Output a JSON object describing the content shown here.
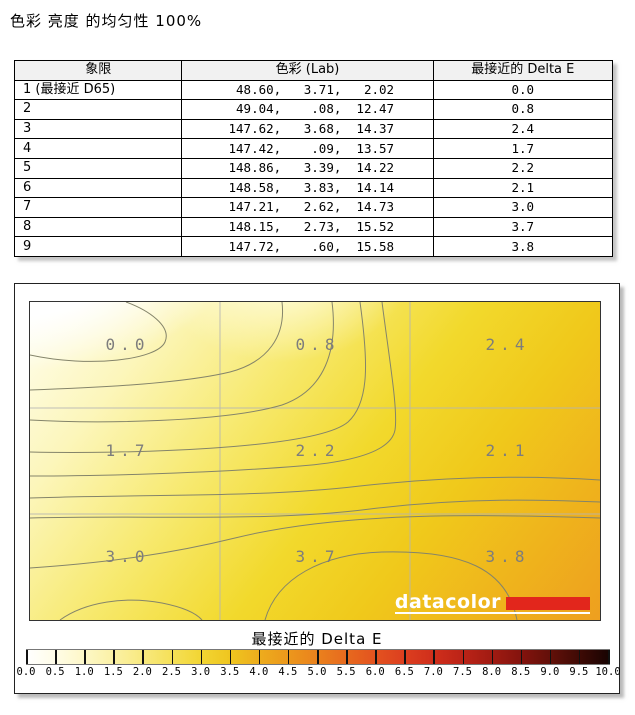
{
  "page_title": "色彩 亮度 的均匀性 100%",
  "table": {
    "headers": [
      "象限",
      "色彩 (Lab)",
      "最接近的 Delta E"
    ],
    "rows": [
      {
        "quadrant": "1 (最接近 D65)",
        "lab": "  48.60,   3.71,   2.02",
        "delta_e": "0.0"
      },
      {
        "quadrant": "2",
        "lab": "  49.04,    .08,  12.47",
        "delta_e": "0.8"
      },
      {
        "quadrant": "3",
        "lab": " 147.62,   3.68,  14.37",
        "delta_e": "2.4"
      },
      {
        "quadrant": "4",
        "lab": " 147.42,    .09,  13.57",
        "delta_e": "1.7"
      },
      {
        "quadrant": "5",
        "lab": " 148.86,   3.39,  14.22",
        "delta_e": "2.2"
      },
      {
        "quadrant": "6",
        "lab": " 148.58,   3.83,  14.14",
        "delta_e": "2.1"
      },
      {
        "quadrant": "7",
        "lab": " 147.21,   2.62,  14.73",
        "delta_e": "3.0"
      },
      {
        "quadrant": "8",
        "lab": " 148.15,   2.73,  15.52",
        "delta_e": "3.7"
      },
      {
        "quadrant": "9",
        "lab": " 147.72,    .60,  15.58",
        "delta_e": "3.8"
      }
    ]
  },
  "chart_data": {
    "type": "heatmap",
    "title": "最接近的 Delta E",
    "grid": {
      "rows": 3,
      "cols": 3
    },
    "cell_values": [
      [
        0.0,
        0.8,
        2.4
      ],
      [
        1.7,
        2.2,
        2.1
      ],
      [
        3.0,
        3.7,
        3.8
      ]
    ],
    "cell_labels": [
      "0.0",
      "0.8",
      "2.4",
      "1.7",
      "2.2",
      "2.1",
      "3.0",
      "3.7",
      "3.8"
    ],
    "legend_label": "最接近的 Delta E",
    "colorbar": {
      "min": 0.0,
      "max": 10.0,
      "step": 0.5,
      "tick_labels": [
        "0.0",
        "0.5",
        "1.0",
        "1.5",
        "2.0",
        "2.5",
        "3.0",
        "3.5",
        "4.0",
        "4.5",
        "5.0",
        "5.5",
        "6.0",
        "6.5",
        "7.0",
        "7.5",
        "8.0",
        "8.5",
        "9.0",
        "9.5",
        "10.0"
      ],
      "scale_colors": {
        "low": "#ffffff",
        "yellow": "#f2d532",
        "orange": "#ec971c",
        "red": "#cf2e1b",
        "high": "#180302"
      }
    },
    "brand": "datacolor",
    "brand_red": "#e2261c",
    "layout": {
      "gridlines": true,
      "legend_position": "bottom"
    }
  }
}
